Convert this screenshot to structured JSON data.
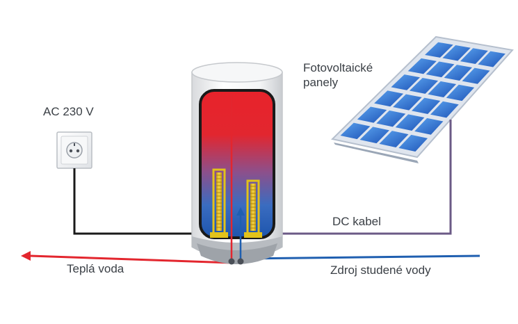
{
  "labels": {
    "ac_source": "AC 230 V",
    "pv_panels_line1": "Fotovoltaické",
    "pv_panels_line2": "panely",
    "dc_cable": "DC kabel",
    "hot_water": "Teplá voda",
    "cold_water": "Zdroj studené vody"
  },
  "colors": {
    "ac_wire": "#1a1a1a",
    "dc_wire": "#6b5a86",
    "hot_water": "#e3262e",
    "cold_water": "#1f5fb0",
    "tank_hot": "#e8232b",
    "tank_cold": "#2f6fc0",
    "heating_element": "#e2c21a",
    "panel_cell": "#2c6fd0",
    "panel_frame": "#cfd8e6"
  }
}
